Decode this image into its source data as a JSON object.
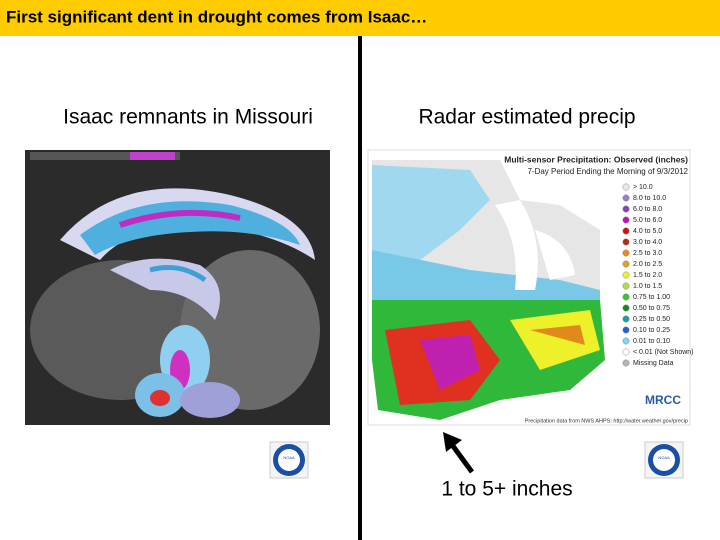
{
  "title": "First significant dent in drought comes from Isaac…",
  "left": {
    "heading": "Isaac remnants in Missouri"
  },
  "right": {
    "heading": "Radar estimated precip",
    "map": {
      "title": "Multi-sensor Precipitation: Observed (inches)",
      "subtitle": "7-Day Period Ending the Morning of 9/3/2012",
      "legend": [
        {
          "label": "> 10.0",
          "color": "#e8e8e8"
        },
        {
          "label": "8.0 to 10.0",
          "color": "#9a7fd1"
        },
        {
          "label": "6.0 to 8.0",
          "color": "#8a3ec8"
        },
        {
          "label": "5.0 to 6.0",
          "color": "#c40ec4"
        },
        {
          "label": "4.0 to 5.0",
          "color": "#d21010"
        },
        {
          "label": "3.0 to 4.0",
          "color": "#b52a12"
        },
        {
          "label": "2.5 to 3.0",
          "color": "#f08a1c"
        },
        {
          "label": "2.0 to 2.5",
          "color": "#e0a020"
        },
        {
          "label": "1.5 to 2.0",
          "color": "#eef02a"
        },
        {
          "label": "1.0 to 1.5",
          "color": "#a8e23a"
        },
        {
          "label": "0.75 to 1.00",
          "color": "#2fc82f"
        },
        {
          "label": "0.50 to 0.75",
          "color": "#158a20"
        },
        {
          "label": "0.25 to 0.50",
          "color": "#1aa0a0"
        },
        {
          "label": "0.10 to 0.25",
          "color": "#2060d8"
        },
        {
          "label": "0.01 to 0.10",
          "color": "#7ad8f0"
        },
        {
          "label": "< 0.01 (Not Shown)",
          "color": "#ffffff"
        },
        {
          "label": "Missing Data",
          "color": "#b4b4b4"
        }
      ],
      "logo": "MRCC",
      "source": "Precipitation data from NWS AHPS: http://water.weather.gov/precip"
    }
  },
  "annotation": "1 to 5+ inches",
  "logo_text": "NOAA"
}
